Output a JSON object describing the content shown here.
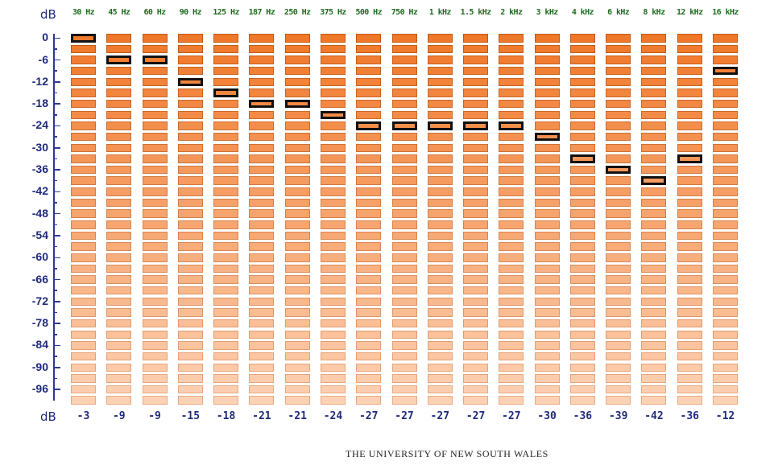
{
  "axis_unit_label": "dB",
  "frequencies": [
    "30 Hz",
    "45 Hz",
    "60 Hz",
    "90 Hz",
    "125 Hz",
    "187 Hz",
    "250 Hz",
    "375 Hz",
    "500 Hz",
    "750 Hz",
    "1 kHz",
    "1.5 kHz",
    "2 kHz",
    "3 kHz",
    "4 kHz",
    "6 kHz",
    "8 kHz",
    "12 kHz",
    "16 kHz"
  ],
  "db_ticks": [
    "0",
    "-6",
    "-12",
    "-18",
    "-24",
    "-30",
    "-36",
    "-42",
    "-48",
    "-54",
    "-60",
    "-66",
    "-72",
    "-78",
    "-84",
    "-90",
    "-96"
  ],
  "db_tick_values": [
    0,
    -6,
    -12,
    -18,
    -24,
    -30,
    -36,
    -42,
    -48,
    -54,
    -60,
    -66,
    -72,
    -78,
    -84,
    -90,
    -96
  ],
  "level_step_db": 3,
  "level_count": 34,
  "selected_levels_db": [
    -3,
    -9,
    -9,
    -15,
    -18,
    -21,
    -21,
    -24,
    -27,
    -27,
    -27,
    -27,
    -27,
    -30,
    -36,
    -39,
    -42,
    -36,
    -12
  ],
  "selected_labels": [
    "-3",
    "-9",
    "-9",
    "-15",
    "-18",
    "-21",
    "-21",
    "-24",
    "-27",
    "-27",
    "-27",
    "-27",
    "-27",
    "-30",
    "-36",
    "-39",
    "-42",
    "-36",
    "-12"
  ],
  "colors": {
    "cell_top": "#f0782a",
    "cell_bottom": "#fdd2b4",
    "cell_border": "#bf5a14",
    "selected_border": "#111111",
    "axis": "#2f3a8a",
    "freq_label": "#1e6b1e"
  },
  "footer_text": "THE UNIVERSITY OF NEW SOUTH WALES"
}
